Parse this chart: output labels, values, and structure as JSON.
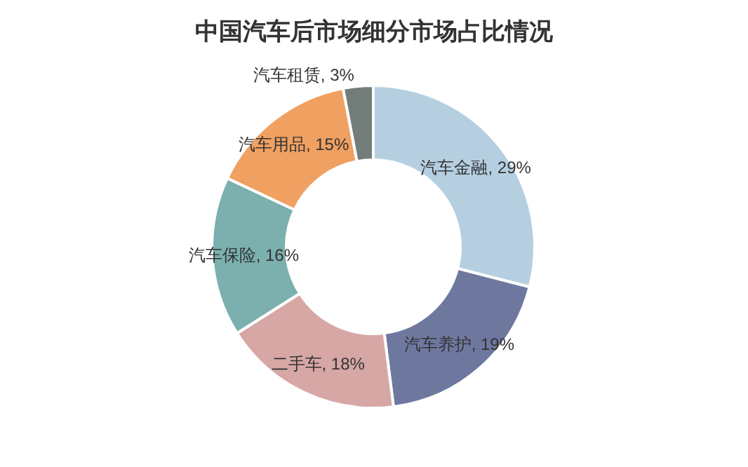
{
  "chart_data": {
    "type": "donut",
    "title": "中国汽车后市场细分市场占比情况",
    "categories": [
      "汽车金融",
      "汽车养护",
      "二手车",
      "汽车保险",
      "汽车用品",
      "汽车租赁"
    ],
    "values": [
      29,
      19,
      18,
      16,
      15,
      3
    ],
    "colors": [
      "#b5cfe1",
      "#6e789f",
      "#d6a7a5",
      "#7bb0ae",
      "#f0a061",
      "#737d79"
    ],
    "value_labels": [
      "29%",
      "19%",
      "18%",
      "16%",
      "15%",
      "3%"
    ]
  }
}
